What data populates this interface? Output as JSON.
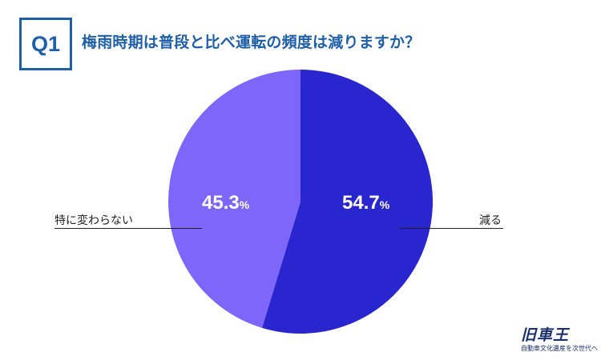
{
  "header": {
    "badge": "Q1",
    "question": "梅雨時期は普段と比べ運転の頻度は減りますか？"
  },
  "chart_data": {
    "type": "pie",
    "categories": [
      "減る",
      "特に変わらない"
    ],
    "values": [
      54.7,
      45.3
    ],
    "value_labels": [
      "54.7",
      "45.3"
    ],
    "unit": "%",
    "colors": [
      "#2a26cf",
      "#7f66fa"
    ],
    "start_angle_deg": 0,
    "direction": "clockwise"
  },
  "logo": {
    "main": "旧車王",
    "sub": "自動車文化遺産を次世代へ"
  }
}
